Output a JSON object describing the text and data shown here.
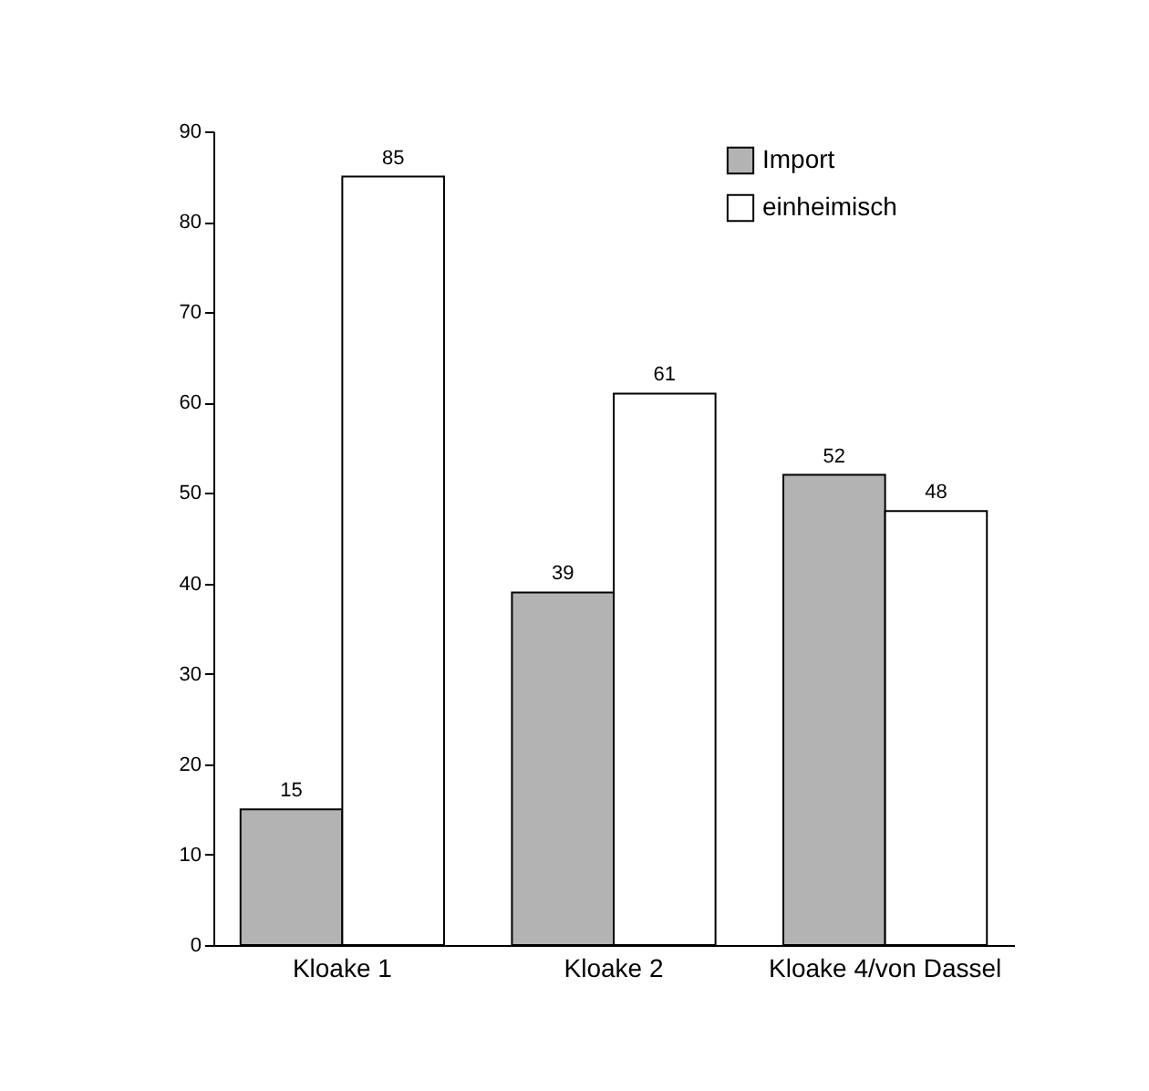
{
  "chart_data": {
    "type": "bar",
    "categories": [
      "Kloake 1",
      "Kloake 2",
      "Kloake 4/von Dassel"
    ],
    "series": [
      {
        "name": "Import",
        "color": "#b3b3b3",
        "values": [
          15,
          39,
          52
        ]
      },
      {
        "name": "einheimisch",
        "color": "#ffffff",
        "values": [
          85,
          61,
          48
        ]
      }
    ],
    "ylim": [
      0,
      90
    ],
    "yticks": [
      0,
      10,
      20,
      30,
      40,
      50,
      60,
      70,
      80,
      90
    ],
    "grid": false,
    "legend": "top right",
    "data_labels": true
  }
}
